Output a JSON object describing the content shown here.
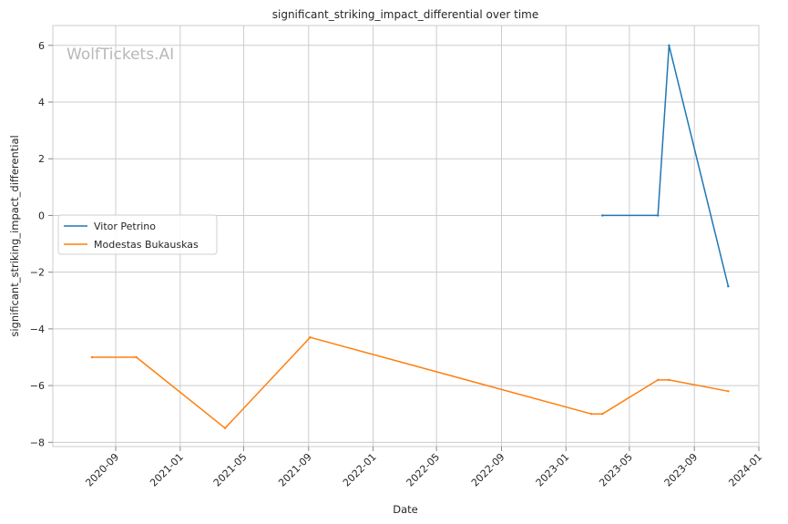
{
  "chart_data": {
    "type": "line",
    "title": "significant_striking_impact_differential over time",
    "xlabel": "Date",
    "ylabel": "significant_striking_impact_differential",
    "watermark": "WolfTickets.AI",
    "x_ticks": [
      "2020-09",
      "2021-01",
      "2021-05",
      "2021-09",
      "2022-01",
      "2022-05",
      "2022-09",
      "2023-01",
      "2023-05",
      "2023-09",
      "2024-01"
    ],
    "y_ticks": [
      6,
      4,
      2,
      0,
      -2,
      -4,
      -6,
      -8
    ],
    "y_tick_labels": [
      "6",
      "4",
      "2",
      "0",
      "−2",
      "−4",
      "−6",
      "−8"
    ],
    "xlim": [
      "2020-05-05",
      "2024-01-01"
    ],
    "ylim": [
      -8.15,
      6.7
    ],
    "grid": true,
    "legend_position": "center-left",
    "series": [
      {
        "name": "Vitor Petrino",
        "color": "#1f77b4",
        "points": [
          {
            "x": "2023-03-11",
            "y": 0
          },
          {
            "x": "2023-06-24",
            "y": 0
          },
          {
            "x": "2023-07-15",
            "y": 6
          },
          {
            "x": "2023-11-04",
            "y": -2.5
          }
        ]
      },
      {
        "name": "Modestas Bukauskas",
        "color": "#ff7f0e",
        "points": [
          {
            "x": "2020-07-18",
            "y": -5
          },
          {
            "x": "2020-10-10",
            "y": -5
          },
          {
            "x": "2021-03-27",
            "y": -7.5
          },
          {
            "x": "2021-09-04",
            "y": -4.3
          },
          {
            "x": "2023-02-18",
            "y": -7
          },
          {
            "x": "2023-03-11",
            "y": -7
          },
          {
            "x": "2023-06-24",
            "y": -5.8
          },
          {
            "x": "2023-07-15",
            "y": -5.8
          },
          {
            "x": "2023-11-04",
            "y": -6.2
          }
        ]
      }
    ]
  }
}
